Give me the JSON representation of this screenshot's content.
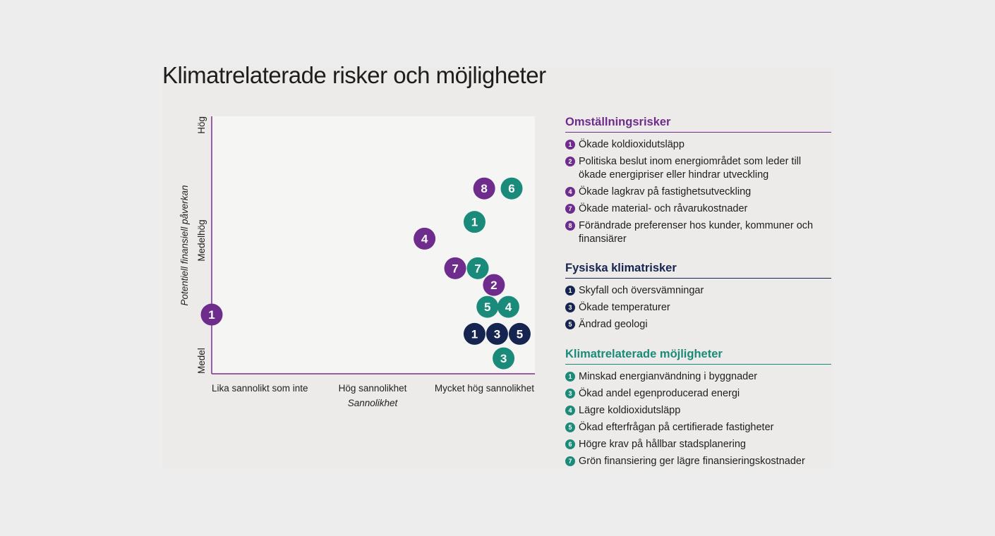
{
  "page": {
    "title": "Klimatrelaterade risker och möjligheter"
  },
  "colors": {
    "omstallning": "#6e2c8c",
    "fysiska": "#152550",
    "mojligheter": "#1a8b7a",
    "axis": "#7b2d8e",
    "plot_bg": "#f5f5f4"
  },
  "chart_data": {
    "type": "scatter",
    "title": "",
    "xlabel": "Sannolikhet",
    "ylabel": "Potentiell finansiell påverkan",
    "x_categories": [
      "Lika sannolikt som inte",
      "Hög sannolikhet",
      "Mycket hög sannolikhet"
    ],
    "y_categories": [
      "Medel",
      "Medelhög",
      "Hög"
    ],
    "xlim": [
      0,
      2
    ],
    "ylim": [
      0,
      2
    ],
    "grid": false,
    "series": [
      {
        "name": "Omställningsrisker",
        "color": "#6e2c8c",
        "points": [
          {
            "label": "1",
            "x": 0.0,
            "y": 0.46
          },
          {
            "label": "8",
            "x": 1.69,
            "y": 1.44
          },
          {
            "label": "4",
            "x": 1.32,
            "y": 1.05
          },
          {
            "label": "7",
            "x": 1.51,
            "y": 0.82
          },
          {
            "label": "2",
            "x": 1.75,
            "y": 0.69
          }
        ]
      },
      {
        "name": "Fysiska klimatrisker",
        "color": "#152550",
        "points": [
          {
            "label": "1",
            "x": 1.63,
            "y": 0.31
          },
          {
            "label": "3",
            "x": 1.77,
            "y": 0.31
          },
          {
            "label": "5",
            "x": 1.91,
            "y": 0.31
          }
        ]
      },
      {
        "name": "Klimatrelaterade möjligheter",
        "color": "#1a8b7a",
        "points": [
          {
            "label": "6",
            "x": 1.86,
            "y": 1.44
          },
          {
            "label": "1",
            "x": 1.63,
            "y": 1.18
          },
          {
            "label": "7",
            "x": 1.65,
            "y": 0.82
          },
          {
            "label": "5",
            "x": 1.71,
            "y": 0.52
          },
          {
            "label": "4",
            "x": 1.84,
            "y": 0.52
          },
          {
            "label": "3",
            "x": 1.81,
            "y": 0.12
          }
        ]
      }
    ]
  },
  "legend": {
    "omstallning": {
      "heading": "Omställningsrisker",
      "items": [
        {
          "num": "1",
          "text": "Ökade koldioxidutsläpp"
        },
        {
          "num": "2",
          "text": "Politiska beslut inom energiområdet som leder till ökade energipriser eller hindrar utveckling"
        },
        {
          "num": "4",
          "text": "Ökade lagkrav på fastighetsutveckling"
        },
        {
          "num": "7",
          "text": "Ökade material- och råvarukostnader"
        },
        {
          "num": "8",
          "text": "Förändrade preferenser hos kunder, kommuner och finansiärer"
        }
      ]
    },
    "fysiska": {
      "heading": "Fysiska klimatrisker",
      "items": [
        {
          "num": "1",
          "text": "Skyfall och översvämningar"
        },
        {
          "num": "3",
          "text": "Ökade temperaturer"
        },
        {
          "num": "5",
          "text": "Ändrad geologi"
        }
      ]
    },
    "mojligheter": {
      "heading": "Klimatrelaterade möjligheter",
      "items": [
        {
          "num": "1",
          "text": "Minskad energianvändning i byggnader"
        },
        {
          "num": "3",
          "text": "Ökad andel egenproducerad energi"
        },
        {
          "num": "4",
          "text": "Lägre koldioxidutsläpp"
        },
        {
          "num": "5",
          "text": "Ökad efterfrågan på certifierade fastigheter"
        },
        {
          "num": "6",
          "text": "Högre krav på hållbar stadsplanering"
        },
        {
          "num": "7",
          "text": "Grön finansiering ger lägre finansieringskostnader"
        }
      ]
    }
  }
}
